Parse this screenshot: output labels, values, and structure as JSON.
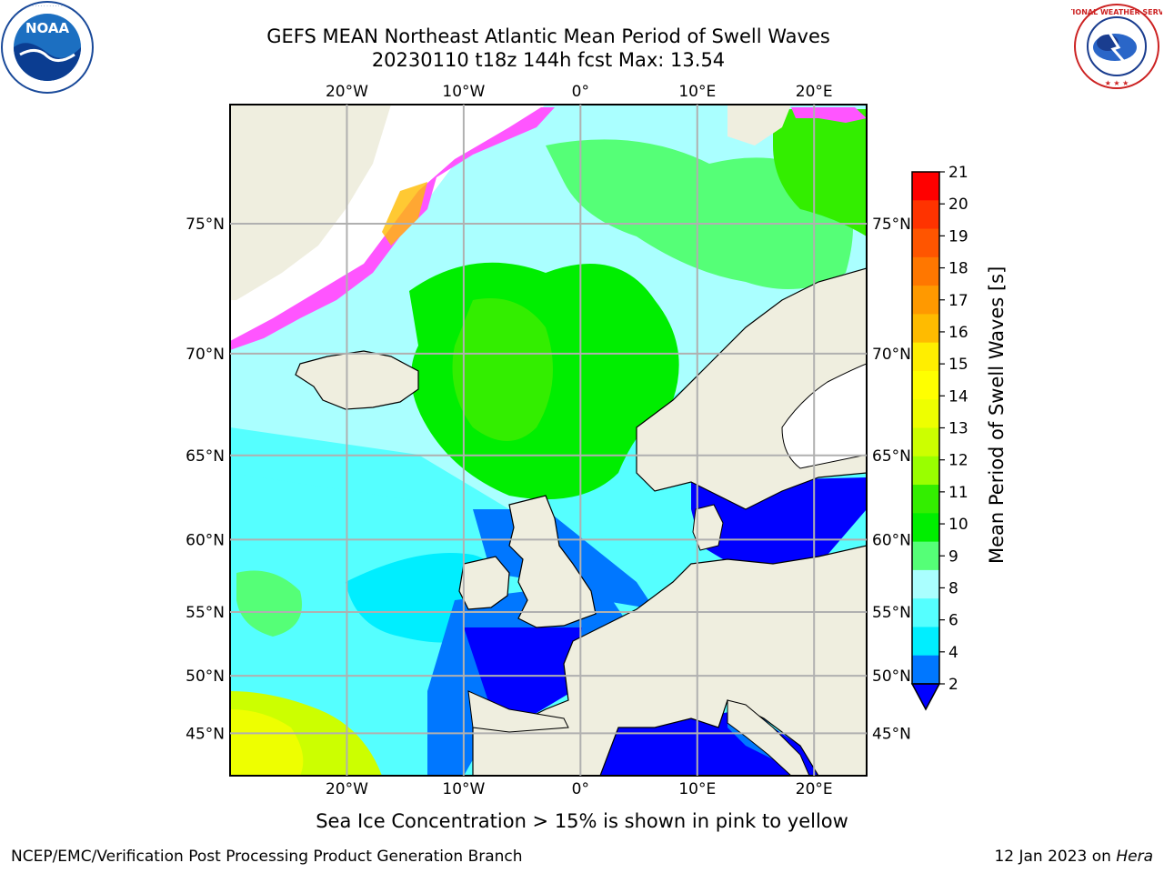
{
  "title": {
    "line1": "GEFS MEAN Northeast Atlantic Mean Period of Swell Waves",
    "line2": "20230110 t18z 144h fcst   Max: 13.54"
  },
  "map": {
    "lon_labels": [
      "20°W",
      "10°W",
      "0°",
      "10°E",
      "20°E"
    ],
    "lat_labels": [
      "75°N",
      "70°N",
      "65°N",
      "60°N",
      "55°N",
      "50°N",
      "45°N"
    ],
    "lon_values": [
      -20,
      -10,
      0,
      10,
      20
    ],
    "lat_values": [
      75,
      70,
      65,
      60,
      55,
      50,
      45
    ],
    "lon_range": [
      -30,
      24.5
    ],
    "lat_range": [
      41,
      78.5
    ]
  },
  "colorbar": {
    "label": "Mean Period of Swell Waves [s]",
    "ticks": [
      "21",
      "20",
      "19",
      "18",
      "17",
      "16",
      "15",
      "14",
      "13",
      "12",
      "11",
      "10",
      "9",
      "8",
      "6",
      "4",
      "2"
    ],
    "colors": [
      "#ff0000",
      "#ff3300",
      "#ff5500",
      "#ff7700",
      "#ff9900",
      "#ffbb00",
      "#ffee00",
      "#ffff00",
      "#eeff00",
      "#ccff00",
      "#99ff00",
      "#33ee00",
      "#00ee00",
      "#55ff77",
      "#aaffff",
      "#55ffff",
      "#00eeff",
      "#0077ff",
      "#0000ff"
    ],
    "extend_color": "#0000ff"
  },
  "caption": "Sea Ice Concentration > 15% is shown in pink to yellow",
  "footer": {
    "left": "NCEP/EMC/Verification Post Processing Product Generation Branch",
    "right_date": "12 Jan 2023 on ",
    "right_host": "Hera"
  },
  "logos": {
    "left": "NOAA",
    "right_ring": "NATIONAL WEATHER SERVICE"
  }
}
